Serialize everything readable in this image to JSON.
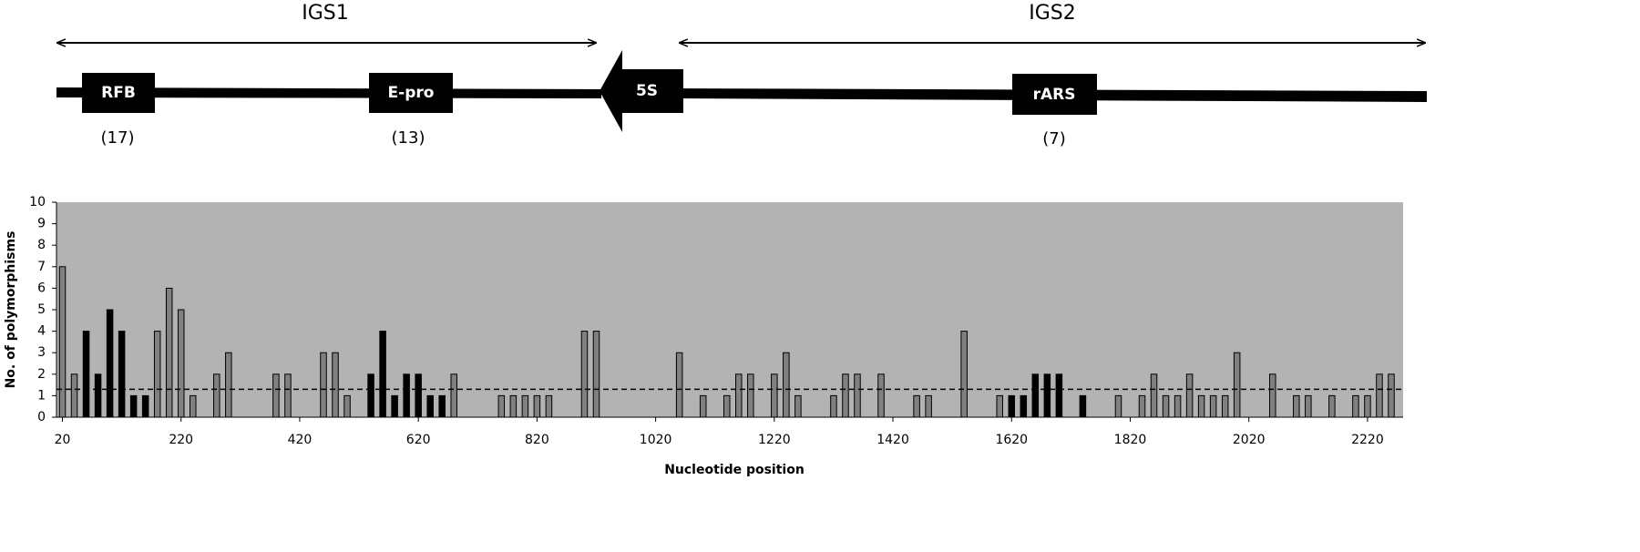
{
  "diagram": {
    "regions": [
      "IGS1",
      "IGS2"
    ],
    "elements": [
      "RFB",
      "E-pro",
      "5S",
      "rARS"
    ],
    "counts": [
      "(17)",
      "(13)",
      "(7)"
    ]
  },
  "chart_data": {
    "type": "bar",
    "xlabel": "Nucleotide position",
    "ylabel": "No. of polymorphisms",
    "x": [
      20,
      40,
      60,
      80,
      100,
      120,
      140,
      160,
      180,
      200,
      220,
      240,
      280,
      300,
      380,
      400,
      460,
      480,
      500,
      540,
      560,
      580,
      600,
      620,
      640,
      660,
      680,
      760,
      780,
      800,
      820,
      840,
      900,
      920,
      1060,
      1100,
      1140,
      1160,
      1180,
      1220,
      1240,
      1260,
      1320,
      1340,
      1360,
      1400,
      1460,
      1480,
      1540,
      1600,
      1620,
      1640,
      1660,
      1680,
      1700,
      1740,
      1800,
      1840,
      1860,
      1880,
      1900,
      1920,
      1940,
      1960,
      1980,
      2000,
      2060,
      2100,
      2120,
      2160,
      2200,
      2220,
      2240,
      2260
    ],
    "values": [
      7,
      2,
      4,
      2,
      5,
      4,
      1,
      1,
      4,
      6,
      5,
      1,
      2,
      3,
      2,
      2,
      3,
      3,
      1,
      2,
      4,
      1,
      2,
      2,
      1,
      1,
      2,
      1,
      1,
      1,
      1,
      1,
      4,
      4,
      3,
      1,
      1,
      2,
      2,
      2,
      3,
      1,
      1,
      2,
      2,
      2,
      1,
      1,
      4,
      1,
      1,
      1,
      2,
      2,
      2,
      1,
      1,
      1,
      2,
      1,
      1,
      2,
      1,
      1,
      1,
      3,
      2,
      1,
      1,
      1,
      1,
      1,
      2,
      2
    ],
    "colors": [
      "#808080",
      "#808080",
      "#000000",
      "#000000",
      "#000000",
      "#000000",
      "#000000",
      "#000000",
      "#808080",
      "#808080",
      "#808080",
      "#808080",
      "#808080",
      "#808080",
      "#808080",
      "#808080",
      "#808080",
      "#808080",
      "#808080",
      "#000000",
      "#000000",
      "#000000",
      "#000000",
      "#000000",
      "#000000",
      "#000000",
      "#808080",
      "#808080",
      "#808080",
      "#808080",
      "#808080",
      "#808080",
      "#808080",
      "#808080",
      "#808080",
      "#808080",
      "#808080",
      "#808080",
      "#808080",
      "#808080",
      "#808080",
      "#808080",
      "#808080",
      "#808080",
      "#808080",
      "#808080",
      "#808080",
      "#808080",
      "#808080",
      "#808080",
      "#000000",
      "#000000",
      "#000000",
      "#000000",
      "#000000",
      "#000000",
      "#808080",
      "#808080",
      "#808080",
      "#808080",
      "#808080",
      "#808080",
      "#808080",
      "#808080",
      "#808080",
      "#808080",
      "#808080",
      "#808080",
      "#808080",
      "#808080",
      "#808080",
      "#808080",
      "#808080",
      "#808080"
    ],
    "xlim": [
      10,
      2280
    ],
    "xticks": [
      20,
      220,
      420,
      620,
      820,
      1020,
      1220,
      1420,
      1620,
      1820,
      2020,
      2220
    ],
    "ylim": [
      0,
      10
    ],
    "yticks": [
      0,
      1,
      2,
      3,
      4,
      5,
      6,
      7,
      8,
      9,
      10
    ],
    "hline": 1.3,
    "plot_background": "#b3b3b3"
  }
}
